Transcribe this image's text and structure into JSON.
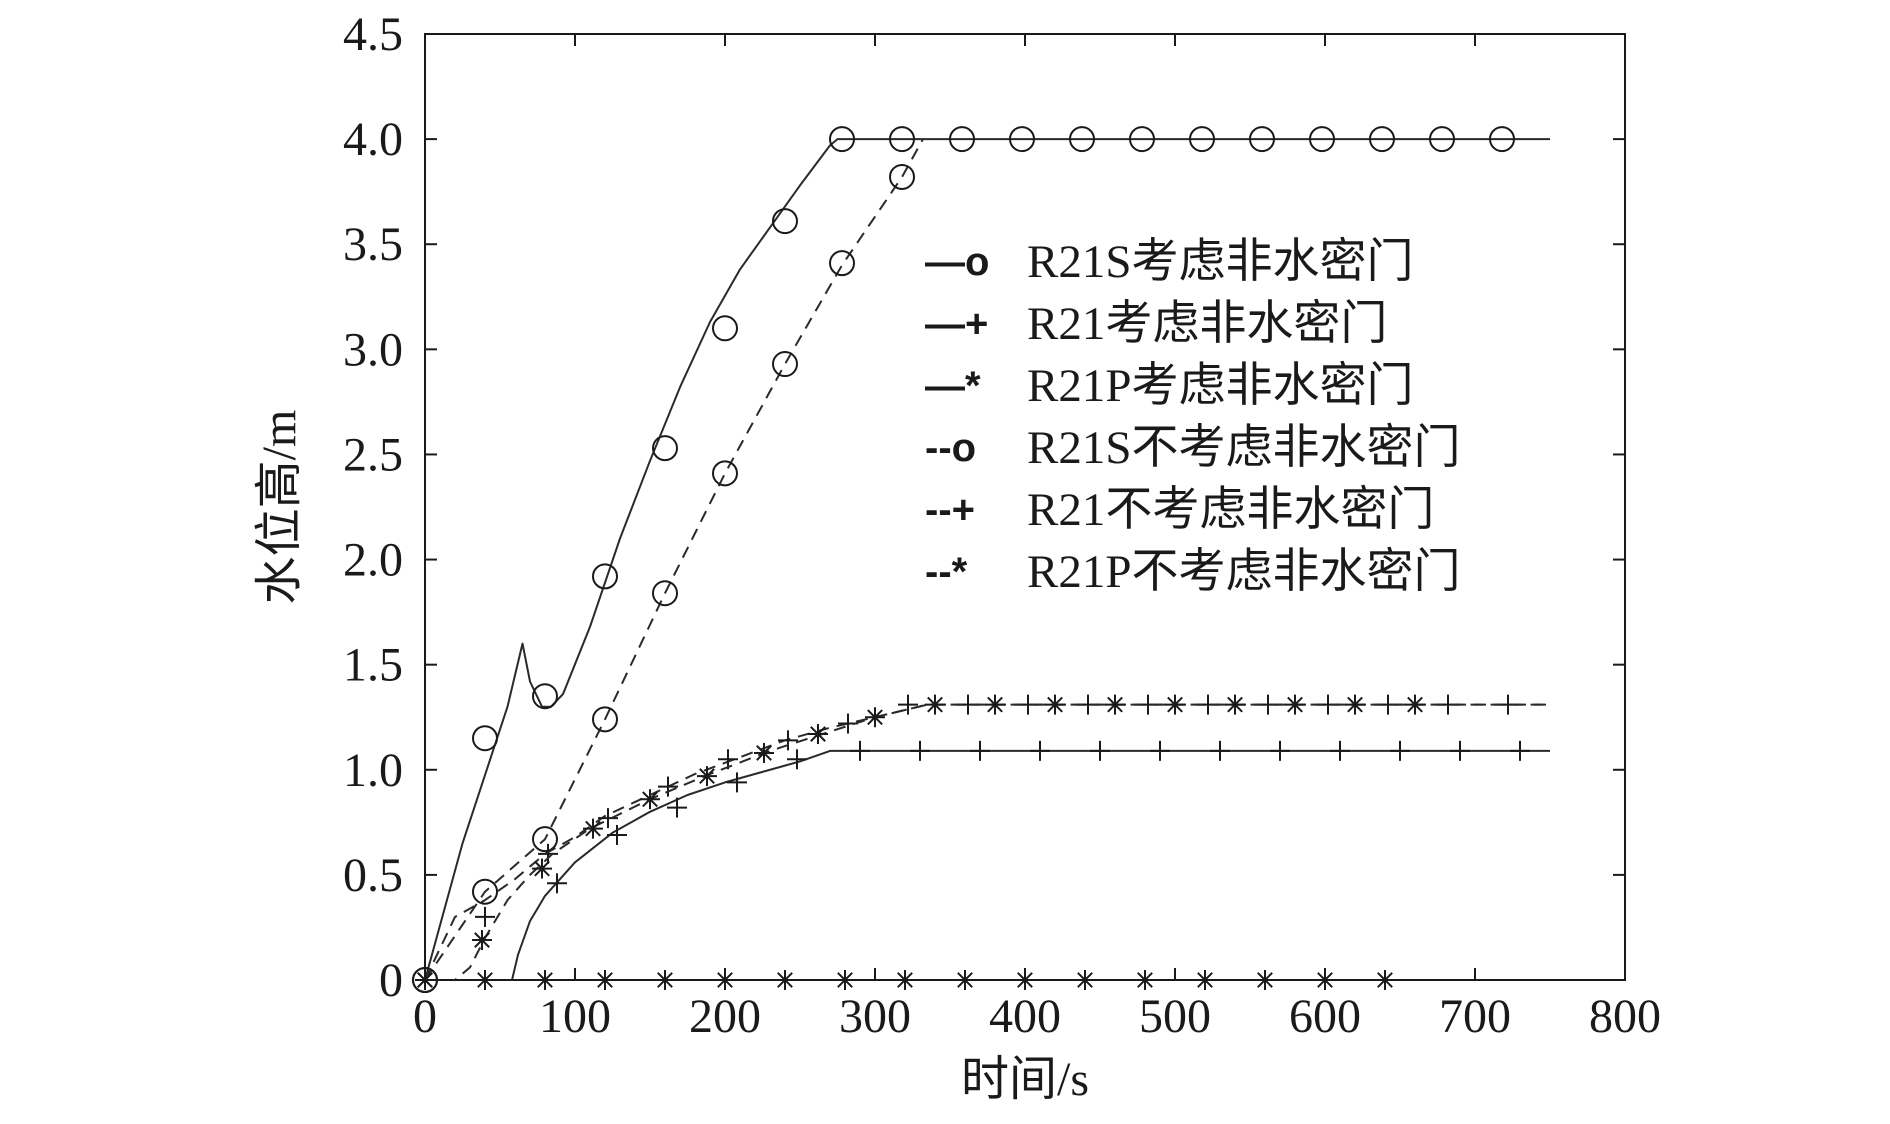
{
  "chart_data": {
    "type": "line",
    "title": "",
    "xlabel": "时间/s",
    "ylabel": "水位高/m",
    "xlim": [
      0,
      800
    ],
    "ylim": [
      0,
      4.5
    ],
    "xticks": [
      0,
      100,
      200,
      300,
      400,
      500,
      600,
      700,
      800
    ],
    "xtick_labels": [
      "0",
      "100",
      "200",
      "300",
      "400",
      "500",
      "600",
      "700",
      "800"
    ],
    "yticks": [
      0,
      0.5,
      1.0,
      1.5,
      2.0,
      2.5,
      3.0,
      3.5,
      4.0,
      4.5
    ],
    "ytick_labels": [
      "0",
      "0.5",
      "1.0",
      "1.5",
      "2.0",
      "2.5",
      "3.0",
      "3.5",
      "4.0",
      "4.5"
    ],
    "grid": false,
    "legend_position": "right",
    "series": [
      {
        "name": "R21S考虑非水密门",
        "legend_marker": "—o",
        "line_style": "solid",
        "marker": "circle",
        "line": [
          [
            0,
            0
          ],
          [
            25,
            0.65
          ],
          [
            55,
            1.3
          ],
          [
            65,
            1.6
          ],
          [
            70,
            1.42
          ],
          [
            78,
            1.3
          ],
          [
            84,
            1.3
          ],
          [
            92,
            1.36
          ],
          [
            110,
            1.68
          ],
          [
            130,
            2.1
          ],
          [
            150,
            2.47
          ],
          [
            170,
            2.82
          ],
          [
            190,
            3.13
          ],
          [
            210,
            3.38
          ],
          [
            230,
            3.58
          ],
          [
            250,
            3.78
          ],
          [
            270,
            3.97
          ],
          [
            275,
            4.0
          ],
          [
            750,
            4.0
          ]
        ],
        "points": [
          [
            0,
            0
          ],
          [
            40,
            1.15
          ],
          [
            80,
            1.35
          ],
          [
            120,
            1.92
          ],
          [
            160,
            2.53
          ],
          [
            200,
            3.1
          ],
          [
            240,
            3.61
          ],
          [
            278,
            4.0
          ],
          [
            318,
            4.0
          ],
          [
            358,
            4.0
          ],
          [
            398,
            4.0
          ],
          [
            438,
            4.0
          ],
          [
            478,
            4.0
          ],
          [
            518,
            4.0
          ],
          [
            558,
            4.0
          ],
          [
            598,
            4.0
          ],
          [
            638,
            4.0
          ],
          [
            678,
            4.0
          ],
          [
            718,
            4.0
          ]
        ]
      },
      {
        "name": "R21考虑非水密门",
        "legend_marker": "—+",
        "line_style": "solid",
        "marker": "plus",
        "line": [
          [
            0,
            0
          ],
          [
            58,
            0
          ],
          [
            62,
            0.12
          ],
          [
            70,
            0.28
          ],
          [
            80,
            0.4
          ],
          [
            100,
            0.56
          ],
          [
            125,
            0.7
          ],
          [
            150,
            0.8
          ],
          [
            175,
            0.88
          ],
          [
            200,
            0.94
          ],
          [
            225,
            0.99
          ],
          [
            250,
            1.04
          ],
          [
            270,
            1.09
          ],
          [
            750,
            1.09
          ]
        ],
        "points": [
          [
            0,
            0
          ],
          [
            40,
            0
          ],
          [
            88,
            0.46
          ],
          [
            128,
            0.69
          ],
          [
            168,
            0.82
          ],
          [
            208,
            0.94
          ],
          [
            248,
            1.05
          ],
          [
            290,
            1.09
          ],
          [
            330,
            1.09
          ],
          [
            370,
            1.09
          ],
          [
            410,
            1.09
          ],
          [
            450,
            1.09
          ],
          [
            490,
            1.09
          ],
          [
            530,
            1.09
          ],
          [
            570,
            1.09
          ],
          [
            610,
            1.09
          ],
          [
            650,
            1.09
          ],
          [
            690,
            1.09
          ],
          [
            730,
            1.09
          ]
        ]
      },
      {
        "name": "R21P考虑非水密门",
        "legend_marker": "—*",
        "line_style": "solid",
        "marker": "asterisk",
        "line": [
          [
            0,
            0
          ],
          [
            750,
            0
          ]
        ],
        "points": [
          [
            0,
            0
          ],
          [
            40,
            0
          ],
          [
            80,
            0
          ],
          [
            120,
            0
          ],
          [
            160,
            0
          ],
          [
            200,
            0
          ],
          [
            240,
            0
          ],
          [
            280,
            0
          ],
          [
            320,
            0
          ],
          [
            360,
            0
          ],
          [
            400,
            0
          ],
          [
            440,
            0
          ],
          [
            480,
            0
          ],
          [
            520,
            0
          ],
          [
            560,
            0
          ],
          [
            600,
            0
          ],
          [
            640,
            0
          ]
        ]
      },
      {
        "name": "R21S不考虑非水密门",
        "legend_marker": "--o",
        "line_style": "dashed",
        "marker": "circle",
        "line": [
          [
            0,
            0
          ],
          [
            40,
            0.42
          ],
          [
            80,
            0.67
          ],
          [
            120,
            1.24
          ],
          [
            160,
            1.84
          ],
          [
            200,
            2.41
          ],
          [
            240,
            2.93
          ],
          [
            278,
            3.4
          ],
          [
            318,
            3.82
          ],
          [
            332,
            4.0
          ]
        ],
        "points": [
          [
            0,
            0
          ],
          [
            40,
            0.42
          ],
          [
            80,
            0.67
          ],
          [
            120,
            1.24
          ],
          [
            160,
            1.84
          ],
          [
            200,
            2.41
          ],
          [
            240,
            2.93
          ],
          [
            278,
            3.41
          ],
          [
            318,
            3.82
          ]
        ]
      },
      {
        "name": "R21不考虑非水密门",
        "legend_marker": "--+",
        "line_style": "dashed",
        "marker": "plus",
        "line": [
          [
            0,
            0
          ],
          [
            20,
            0.3
          ],
          [
            40,
            0.38
          ],
          [
            60,
            0.48
          ],
          [
            80,
            0.6
          ],
          [
            100,
            0.68
          ],
          [
            120,
            0.78
          ],
          [
            150,
            0.88
          ],
          [
            180,
            0.98
          ],
          [
            210,
            1.06
          ],
          [
            240,
            1.14
          ],
          [
            270,
            1.2
          ],
          [
            300,
            1.25
          ],
          [
            335,
            1.31
          ],
          [
            750,
            1.31
          ]
        ],
        "points": [
          [
            0,
            0
          ],
          [
            40,
            0.3
          ],
          [
            82,
            0.6
          ],
          [
            122,
            0.77
          ],
          [
            162,
            0.92
          ],
          [
            202,
            1.05
          ],
          [
            242,
            1.14
          ],
          [
            282,
            1.22
          ],
          [
            322,
            1.31
          ],
          [
            362,
            1.31
          ],
          [
            402,
            1.31
          ],
          [
            442,
            1.31
          ],
          [
            482,
            1.31
          ],
          [
            522,
            1.31
          ],
          [
            562,
            1.31
          ],
          [
            602,
            1.31
          ],
          [
            642,
            1.31
          ],
          [
            682,
            1.31
          ],
          [
            722,
            1.31
          ]
        ]
      },
      {
        "name": "R21P不考虑非水密门",
        "legend_marker": "--*",
        "line_style": "dashed",
        "marker": "asterisk",
        "line": [
          [
            0,
            0
          ],
          [
            20,
            0
          ],
          [
            30,
            0.06
          ],
          [
            40,
            0.2
          ],
          [
            55,
            0.38
          ],
          [
            70,
            0.5
          ],
          [
            85,
            0.6
          ],
          [
            110,
            0.72
          ],
          [
            150,
            0.86
          ],
          [
            190,
            0.98
          ],
          [
            230,
            1.09
          ],
          [
            265,
            1.17
          ],
          [
            300,
            1.25
          ],
          [
            335,
            1.31
          ],
          [
            750,
            1.31
          ]
        ],
        "points": [
          [
            0,
            0
          ],
          [
            38,
            0.19
          ],
          [
            78,
            0.53
          ],
          [
            112,
            0.72
          ],
          [
            150,
            0.86
          ],
          [
            188,
            0.97
          ],
          [
            226,
            1.08
          ],
          [
            262,
            1.17
          ],
          [
            300,
            1.25
          ],
          [
            340,
            1.31
          ],
          [
            380,
            1.31
          ],
          [
            420,
            1.31
          ],
          [
            460,
            1.31
          ],
          [
            500,
            1.31
          ],
          [
            540,
            1.31
          ],
          [
            580,
            1.31
          ],
          [
            620,
            1.31
          ],
          [
            660,
            1.31
          ]
        ]
      }
    ]
  }
}
